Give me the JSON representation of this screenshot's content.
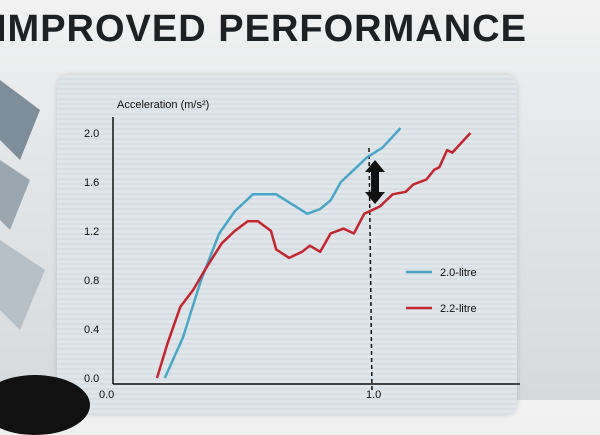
{
  "slide_title": "IMPROVED PERFORMANCE",
  "chart_data": {
    "type": "line",
    "title": "",
    "ylabel": "Acceleration (m/s²)",
    "xlabel": "",
    "xlim": [
      0.0,
      1.5
    ],
    "ylim": [
      0.0,
      2.0
    ],
    "x_ticks": [
      "0.0",
      "1.0"
    ],
    "y_ticks": [
      "0.0",
      "0.4",
      "0.8",
      "1.2",
      "1.6",
      "2.0"
    ],
    "legend_position": "right",
    "reference_line_x": 1.0,
    "annotation": "double-headed arrow showing gap between series at x=1.0",
    "series": [
      {
        "name": "2.0-litre",
        "color": "#4aa6c9",
        "x": [
          0.2,
          0.27,
          0.34,
          0.41,
          0.47,
          0.54,
          0.63,
          0.69,
          0.75,
          0.8,
          0.84,
          0.88,
          0.93,
          0.98,
          1.04,
          1.11
        ],
        "y": [
          0.0,
          0.33,
          0.8,
          1.18,
          1.36,
          1.5,
          1.5,
          1.42,
          1.34,
          1.38,
          1.45,
          1.6,
          1.7,
          1.8,
          1.88,
          2.04
        ]
      },
      {
        "name": "2.2-litre",
        "color": "#c4262e",
        "x": [
          0.17,
          0.21,
          0.26,
          0.31,
          0.36,
          0.42,
          0.47,
          0.52,
          0.56,
          0.61,
          0.63,
          0.68,
          0.73,
          0.76,
          0.8,
          0.84,
          0.89,
          0.93,
          0.97,
          1.03,
          1.08,
          1.13,
          1.16,
          1.21,
          1.24,
          1.26,
          1.29,
          1.31,
          1.38
        ],
        "y": [
          0.0,
          0.28,
          0.58,
          0.72,
          0.9,
          1.1,
          1.2,
          1.28,
          1.28,
          1.2,
          1.05,
          0.98,
          1.03,
          1.08,
          1.03,
          1.18,
          1.22,
          1.18,
          1.34,
          1.4,
          1.5,
          1.52,
          1.58,
          1.62,
          1.7,
          1.72,
          1.86,
          1.84,
          2.0
        ]
      }
    ]
  }
}
